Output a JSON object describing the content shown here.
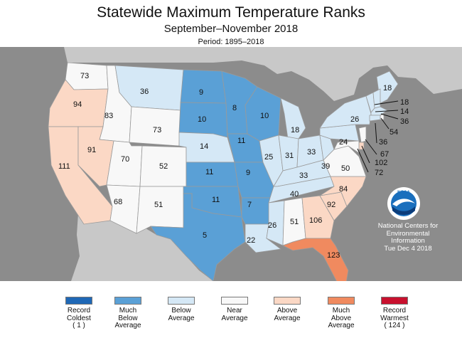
{
  "title": "Statewide Maximum Temperature Ranks",
  "subtitle": "September–November 2018",
  "period": "Period: 1895–2018",
  "credit": {
    "line1": "National Centers for",
    "line2": "Environmental",
    "line3": "Information",
    "line4": "Tue Dec  4 2018"
  },
  "logo_text": "NOAA",
  "colors": {
    "record_coldest": "#1f68b6",
    "much_below": "#5aa0d6",
    "below": "#d5e8f6",
    "near": "#f8f8f8",
    "above": "#fbd8c5",
    "much_above": "#f08a5f",
    "record_warmest": "#c8102e",
    "ocean": "#8c8c8c",
    "foreign_land": "#c8c8c8"
  },
  "legend": [
    {
      "lines": [
        "Record",
        "Coldest",
        "( 1 )"
      ],
      "color": "#1f68b6"
    },
    {
      "lines": [
        "Much",
        "Below",
        "Average"
      ],
      "color": "#5aa0d6"
    },
    {
      "lines": [
        "Below",
        "Average",
        ""
      ],
      "color": "#d5e8f6"
    },
    {
      "lines": [
        "Near",
        "Average",
        ""
      ],
      "color": "#f8f8f8"
    },
    {
      "lines": [
        "Above",
        "Average",
        ""
      ],
      "color": "#fbd8c5"
    },
    {
      "lines": [
        "Much",
        "Above",
        "Average"
      ],
      "color": "#f08a5f"
    },
    {
      "lines": [
        "Record",
        "Warmest",
        "( 124 )"
      ],
      "color": "#c8102e"
    }
  ],
  "states": {
    "WA": {
      "rank": "73",
      "cat": "near"
    },
    "OR": {
      "rank": "94",
      "cat": "above"
    },
    "CA": {
      "rank": "111",
      "cat": "above"
    },
    "ID": {
      "rank": "83",
      "cat": "near"
    },
    "NV": {
      "rank": "91",
      "cat": "above"
    },
    "MT": {
      "rank": "36",
      "cat": "below"
    },
    "WY": {
      "rank": "73",
      "cat": "near"
    },
    "UT": {
      "rank": "70",
      "cat": "near"
    },
    "AZ": {
      "rank": "68",
      "cat": "near"
    },
    "CO": {
      "rank": "52",
      "cat": "near"
    },
    "NM": {
      "rank": "51",
      "cat": "near"
    },
    "ND": {
      "rank": "9",
      "cat": "much_below"
    },
    "SD": {
      "rank": "10",
      "cat": "much_below"
    },
    "NE": {
      "rank": "14",
      "cat": "below"
    },
    "KS": {
      "rank": "11",
      "cat": "much_below"
    },
    "OK": {
      "rank": "11",
      "cat": "much_below"
    },
    "TX": {
      "rank": "5",
      "cat": "much_below"
    },
    "MN": {
      "rank": "8",
      "cat": "much_below"
    },
    "IA": {
      "rank": "11",
      "cat": "much_below"
    },
    "MO": {
      "rank": "9",
      "cat": "much_below"
    },
    "AR": {
      "rank": "7",
      "cat": "much_below"
    },
    "LA": {
      "rank": "22",
      "cat": "below"
    },
    "WI": {
      "rank": "10",
      "cat": "much_below"
    },
    "IL": {
      "rank": "25",
      "cat": "below"
    },
    "MI": {
      "rank": "18",
      "cat": "below"
    },
    "IN": {
      "rank": "31",
      "cat": "below"
    },
    "OH": {
      "rank": "33",
      "cat": "below"
    },
    "KY": {
      "rank": "33",
      "cat": "below"
    },
    "TN": {
      "rank": "40",
      "cat": "below"
    },
    "MS": {
      "rank": "26",
      "cat": "below"
    },
    "AL": {
      "rank": "51",
      "cat": "near"
    },
    "GA": {
      "rank": "106",
      "cat": "above"
    },
    "FL": {
      "rank": "123",
      "cat": "much_above"
    },
    "SC": {
      "rank": "92",
      "cat": "above"
    },
    "NC": {
      "rank": "84",
      "cat": "above"
    },
    "VA": {
      "rank": "50",
      "cat": "near"
    },
    "WV": {
      "rank": "39",
      "cat": "below"
    },
    "PA": {
      "rank": "24",
      "cat": "below"
    },
    "NY": {
      "rank": "26",
      "cat": "below"
    },
    "ME": {
      "rank": "18",
      "cat": "below"
    },
    "VT": {
      "rank": "18",
      "cat": "below"
    },
    "NH": {
      "rank": "14",
      "cat": "below"
    },
    "MA": {
      "rank": "36",
      "cat": "below"
    },
    "RI": {
      "rank": "54",
      "cat": "near"
    },
    "CT": {
      "rank": "36",
      "cat": "below"
    },
    "NJ": {
      "rank": "67",
      "cat": "near"
    },
    "DE": {
      "rank": "102",
      "cat": "above"
    },
    "MD": {
      "rank": "72",
      "cat": "near"
    }
  }
}
